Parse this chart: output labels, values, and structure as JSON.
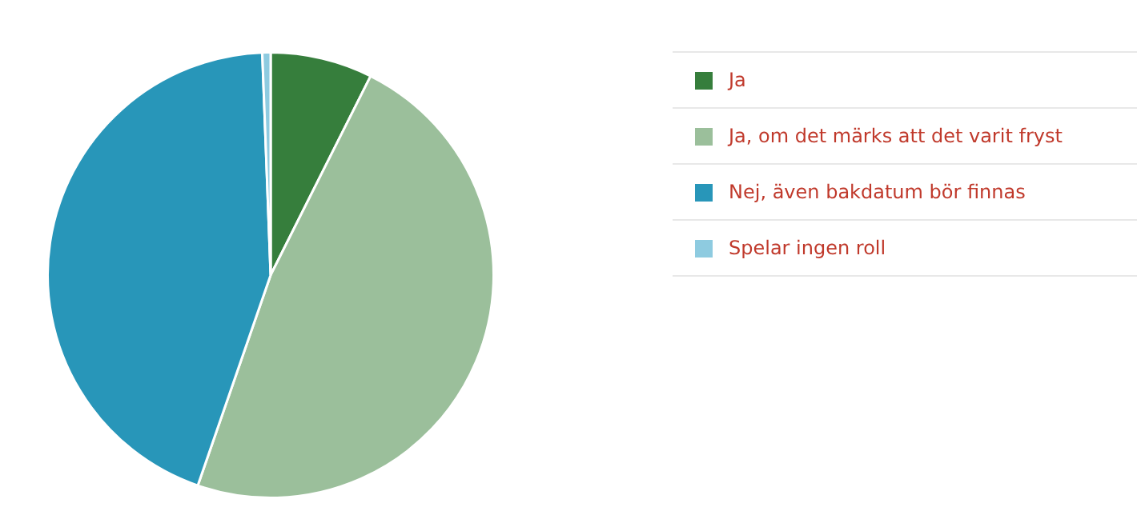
{
  "chart_data": {
    "type": "pie",
    "categories": [
      "Ja",
      "Ja, om det märks att det varit fryst",
      "Nej, även bakdatum bör finnas",
      "Spelar ingen roll"
    ],
    "values": [
      7.4,
      47.9,
      44.1,
      0.6
    ],
    "colors": [
      "#367e3c",
      "#9bbf9b",
      "#2896b9",
      "#8ecbe0"
    ],
    "legend": "right"
  }
}
